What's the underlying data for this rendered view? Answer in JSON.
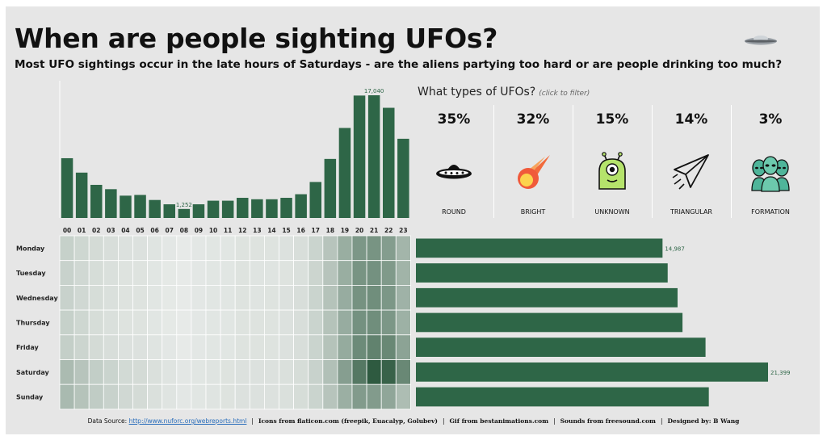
{
  "header": {
    "title": "When are people sighting UFOs?",
    "subtitle": "Most UFO sightings occur in the late hours of Saturdays - are the aliens partying too hard or are people drinking too much?"
  },
  "types": {
    "title": "What types of UFOs?",
    "hint": "(click to filter)",
    "items": [
      {
        "pct": "35%",
        "label": "ROUND",
        "icon": "flying-saucer-icon"
      },
      {
        "pct": "32%",
        "label": "BRIGHT",
        "icon": "meteor-icon"
      },
      {
        "pct": "15%",
        "label": "UNKNOWN",
        "icon": "one-eyed-alien-icon"
      },
      {
        "pct": "14%",
        "label": "TRIANGULAR",
        "icon": "paper-plane-icon"
      },
      {
        "pct": "3%",
        "label": "FORMATION",
        "icon": "alien-group-icon"
      }
    ]
  },
  "colors": {
    "bar": "#2e6647",
    "heat_low": "#f1f2f1",
    "heat_high": "#2e5a40",
    "background": "#e6e6e6"
  },
  "chart_data": [
    {
      "type": "bar",
      "categories": [
        "00",
        "01",
        "02",
        "03",
        "04",
        "05",
        "06",
        "07",
        "08",
        "09",
        "10",
        "11",
        "12",
        "13",
        "14",
        "15",
        "16",
        "17",
        "18",
        "19",
        "20",
        "21",
        "22",
        "23"
      ],
      "values": [
        8300,
        6300,
        4600,
        4000,
        3100,
        3200,
        2500,
        1900,
        1252,
        1900,
        2400,
        2400,
        2800,
        2600,
        2600,
        2800,
        3300,
        5000,
        8200,
        12500,
        17000,
        17040,
        15300,
        11000
      ],
      "data_labels": {
        "8": "1,252",
        "21": "17,040"
      },
      "title": "",
      "xlabel": "",
      "ylabel": "",
      "ylim": [
        0,
        17040
      ]
    },
    {
      "type": "heatmap",
      "rows": [
        "Monday",
        "Tuesday",
        "Wednesday",
        "Thursday",
        "Friday",
        "Saturday",
        "Sunday"
      ],
      "columns": [
        "00",
        "01",
        "02",
        "03",
        "04",
        "05",
        "06",
        "07",
        "08",
        "09",
        "10",
        "11",
        "12",
        "13",
        "14",
        "15",
        "16",
        "17",
        "18",
        "19",
        "20",
        "21",
        "22",
        "23"
      ],
      "intensity": [
        [
          0.22,
          0.18,
          0.15,
          0.13,
          0.11,
          0.11,
          0.09,
          0.07,
          0.05,
          0.07,
          0.08,
          0.08,
          0.1,
          0.1,
          0.1,
          0.11,
          0.13,
          0.2,
          0.3,
          0.45,
          0.6,
          0.62,
          0.56,
          0.4
        ],
        [
          0.21,
          0.17,
          0.14,
          0.12,
          0.1,
          0.1,
          0.08,
          0.06,
          0.05,
          0.07,
          0.08,
          0.08,
          0.1,
          0.09,
          0.09,
          0.1,
          0.12,
          0.19,
          0.3,
          0.45,
          0.62,
          0.64,
          0.58,
          0.41
        ],
        [
          0.21,
          0.17,
          0.14,
          0.12,
          0.1,
          0.1,
          0.08,
          0.06,
          0.05,
          0.07,
          0.08,
          0.08,
          0.1,
          0.09,
          0.1,
          0.11,
          0.13,
          0.2,
          0.31,
          0.46,
          0.63,
          0.66,
          0.6,
          0.42
        ],
        [
          0.22,
          0.18,
          0.14,
          0.12,
          0.1,
          0.1,
          0.08,
          0.06,
          0.05,
          0.07,
          0.08,
          0.08,
          0.1,
          0.1,
          0.1,
          0.11,
          0.13,
          0.2,
          0.31,
          0.46,
          0.64,
          0.66,
          0.6,
          0.43
        ],
        [
          0.23,
          0.19,
          0.15,
          0.13,
          0.11,
          0.11,
          0.09,
          0.07,
          0.05,
          0.07,
          0.08,
          0.08,
          0.1,
          0.1,
          0.1,
          0.11,
          0.13,
          0.2,
          0.31,
          0.47,
          0.68,
          0.74,
          0.7,
          0.52
        ],
        [
          0.36,
          0.3,
          0.24,
          0.2,
          0.16,
          0.15,
          0.12,
          0.09,
          0.07,
          0.08,
          0.09,
          0.1,
          0.11,
          0.11,
          0.11,
          0.12,
          0.14,
          0.21,
          0.33,
          0.55,
          0.8,
          1.0,
          0.95,
          0.7
        ],
        [
          0.37,
          0.31,
          0.25,
          0.21,
          0.17,
          0.15,
          0.12,
          0.09,
          0.07,
          0.08,
          0.09,
          0.1,
          0.11,
          0.11,
          0.11,
          0.12,
          0.14,
          0.2,
          0.3,
          0.44,
          0.57,
          0.57,
          0.5,
          0.35
        ]
      ]
    },
    {
      "type": "bar",
      "orientation": "horizontal",
      "categories": [
        "Monday",
        "Tuesday",
        "Wednesday",
        "Thursday",
        "Friday",
        "Saturday",
        "Sunday"
      ],
      "values": [
        14987,
        15300,
        15900,
        16200,
        17600,
        21399,
        17800
      ],
      "data_labels": {
        "0": "14,987",
        "5": "21,399"
      },
      "title": "",
      "xlabel": "",
      "ylabel": ""
    }
  ],
  "footer": {
    "source_label": "Data Source:",
    "source_link": "http://www.nuforc.org/webreports.html",
    "icons_credit": "Icons from flaticon.com (freepik, Euacalyp, Golubev)",
    "gif_credit": "Gif from bestanimations.com",
    "sounds_credit": "Sounds from freesound.com",
    "designer": "Designed by: B Wang"
  }
}
